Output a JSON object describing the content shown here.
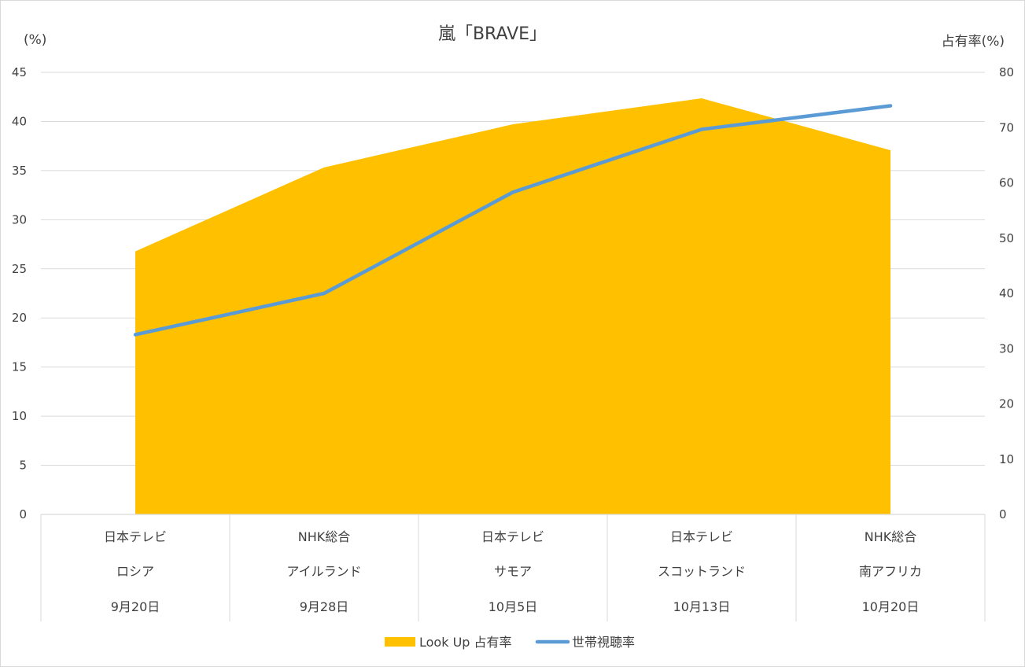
{
  "chart_data": {
    "type": "area+line",
    "title": "嵐「BRAVE」",
    "left_axis": {
      "unit": "(%)",
      "ylim": [
        0,
        45
      ],
      "ticks": [
        0,
        5,
        10,
        15,
        20,
        25,
        30,
        35,
        40,
        45
      ],
      "binds_series": "世帯視聴率"
    },
    "right_axis": {
      "unit": "占有率(%)",
      "ylim": [
        0,
        80
      ],
      "ticks": [
        0,
        10,
        20,
        30,
        40,
        50,
        60,
        70,
        80
      ],
      "binds_series": "Look Up 占有率"
    },
    "categories": [
      {
        "network": "日本テレビ",
        "opponent": "ロシア",
        "date": "9月20日"
      },
      {
        "network": "NHK総合",
        "opponent": "アイルランド",
        "date": "9月28日"
      },
      {
        "network": "日本テレビ",
        "opponent": "サモア",
        "date": "10月5日"
      },
      {
        "network": "日本テレビ",
        "opponent": "スコットランド",
        "date": "10月13日"
      },
      {
        "network": "NHK総合",
        "opponent": "南アフリカ",
        "date": "10月20日"
      }
    ],
    "series": [
      {
        "name": "Look Up 占有率",
        "type": "area",
        "axis": "right",
        "color": "#FFC000",
        "values": [
          47.6,
          62.8,
          70.6,
          75.3,
          65.9
        ]
      },
      {
        "name": "世帯視聴率",
        "type": "line",
        "axis": "left",
        "color": "#5B9BD5",
        "values": [
          18.3,
          22.5,
          32.8,
          39.2,
          41.6
        ]
      }
    ],
    "grid": true,
    "legend_position": "bottom"
  }
}
